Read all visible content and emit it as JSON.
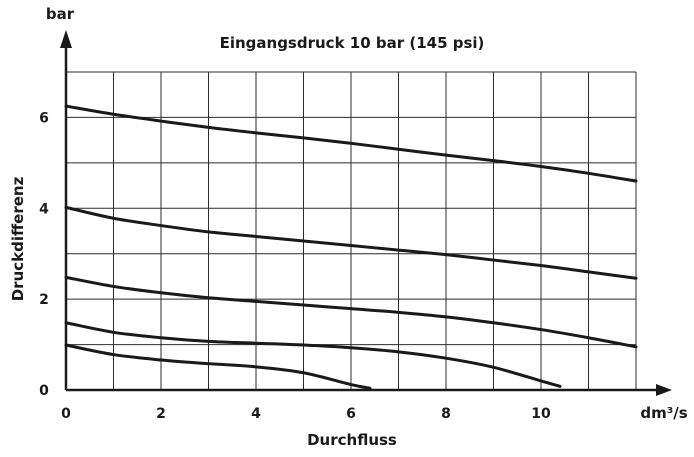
{
  "chart_data": {
    "type": "line",
    "title": "Eingangsdruck 10 bar (145 psi)",
    "xlabel": "Durchfluss",
    "ylabel": "Druckdifferenz",
    "x_unit": "dm³/s",
    "y_unit": "bar",
    "xlim": [
      0,
      12
    ],
    "ylim": [
      0,
      7
    ],
    "x_ticks": [
      0,
      2,
      4,
      6,
      8,
      10
    ],
    "y_ticks": [
      0,
      2,
      4,
      6
    ],
    "x_grid": [
      0,
      1,
      2,
      3,
      4,
      5,
      6,
      7,
      8,
      9,
      10,
      11,
      12
    ],
    "y_grid": [
      0,
      1,
      2,
      3,
      4,
      5,
      6,
      7
    ],
    "grid": true,
    "legend": "none",
    "series": [
      {
        "x": [
          0,
          1,
          2,
          3,
          4,
          5,
          6,
          7,
          8,
          9,
          10,
          11,
          12
        ],
        "y": [
          6.25,
          6.07,
          5.92,
          5.78,
          5.66,
          5.55,
          5.43,
          5.3,
          5.17,
          5.05,
          4.92,
          4.77,
          4.6
        ]
      },
      {
        "x": [
          0,
          1,
          2,
          3,
          4,
          5,
          6,
          7,
          8,
          9,
          10,
          11,
          12
        ],
        "y": [
          4.02,
          3.78,
          3.62,
          3.48,
          3.38,
          3.28,
          3.18,
          3.08,
          2.98,
          2.86,
          2.74,
          2.6,
          2.46
        ]
      },
      {
        "x": [
          0,
          1,
          2,
          3,
          4,
          5,
          6,
          7,
          8,
          9,
          10,
          11,
          12
        ],
        "y": [
          2.48,
          2.28,
          2.14,
          2.03,
          1.95,
          1.87,
          1.79,
          1.71,
          1.61,
          1.48,
          1.33,
          1.15,
          0.95
        ]
      },
      {
        "x": [
          0,
          1,
          2,
          3,
          4,
          5,
          6,
          7,
          8,
          9,
          10,
          10.4
        ],
        "y": [
          1.48,
          1.27,
          1.15,
          1.07,
          1.03,
          0.99,
          0.93,
          0.84,
          0.7,
          0.5,
          0.2,
          0.08
        ]
      },
      {
        "x": [
          0,
          1,
          2,
          3,
          4,
          5,
          6,
          6.4
        ],
        "y": [
          0.99,
          0.78,
          0.66,
          0.58,
          0.51,
          0.38,
          0.12,
          0.04
        ]
      }
    ]
  }
}
